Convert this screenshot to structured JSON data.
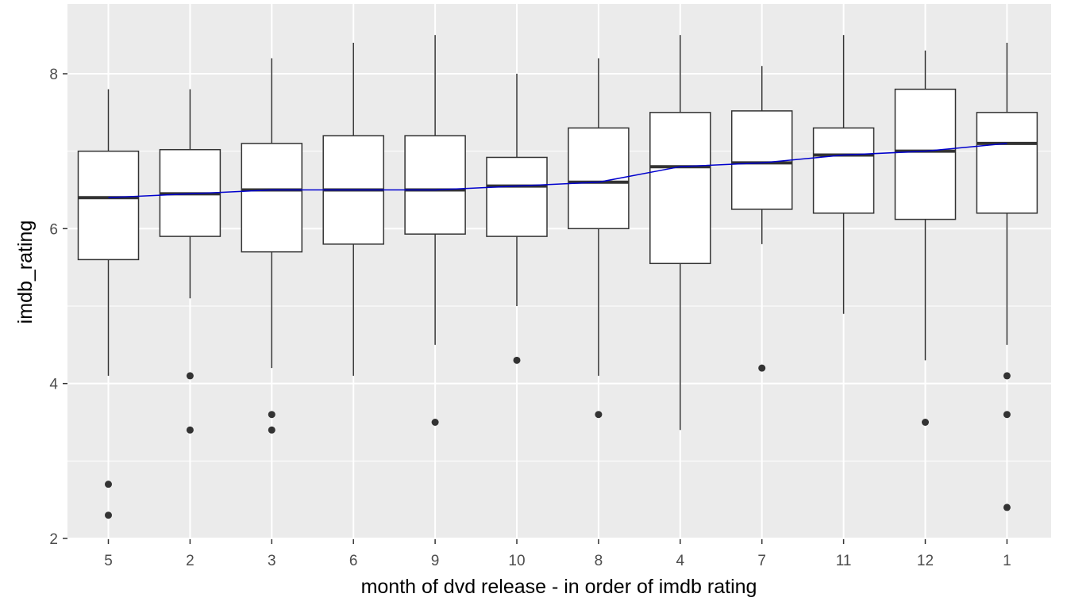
{
  "chart_data": {
    "type": "box",
    "xlabel": "month of dvd release - in order of imdb rating",
    "ylabel": "imdb_rating",
    "ylim": [
      2,
      8.8
    ],
    "yticks": [
      2,
      4,
      6,
      8
    ],
    "grid": true,
    "background": "#ebebeb",
    "median_line_color": "#0000cd",
    "categories": [
      "5",
      "2",
      "3",
      "6",
      "9",
      "10",
      "8",
      "4",
      "7",
      "11",
      "12",
      "1"
    ],
    "boxes": [
      {
        "category": "5",
        "whisker_low": 4.1,
        "q1": 5.6,
        "median": 6.4,
        "q3": 7.0,
        "whisker_high": 7.8,
        "outliers": [
          2.7,
          2.3
        ]
      },
      {
        "category": "2",
        "whisker_low": 5.1,
        "q1": 5.9,
        "median": 6.45,
        "q3": 7.02,
        "whisker_high": 7.8,
        "outliers": [
          4.1,
          3.4
        ]
      },
      {
        "category": "3",
        "whisker_low": 4.2,
        "q1": 5.7,
        "median": 6.5,
        "q3": 7.1,
        "whisker_high": 8.2,
        "outliers": [
          3.6,
          3.4
        ]
      },
      {
        "category": "6",
        "whisker_low": 4.1,
        "q1": 5.8,
        "median": 6.5,
        "q3": 7.2,
        "whisker_high": 8.4,
        "outliers": []
      },
      {
        "category": "9",
        "whisker_low": 4.5,
        "q1": 5.93,
        "median": 6.5,
        "q3": 7.2,
        "whisker_high": 8.5,
        "outliers": [
          3.5
        ]
      },
      {
        "category": "10",
        "whisker_low": 5.0,
        "q1": 5.9,
        "median": 6.55,
        "q3": 6.92,
        "whisker_high": 8.0,
        "outliers": [
          4.3
        ]
      },
      {
        "category": "8",
        "whisker_low": 4.1,
        "q1": 6.0,
        "median": 6.6,
        "q3": 7.3,
        "whisker_high": 8.2,
        "outliers": [
          3.6
        ]
      },
      {
        "category": "4",
        "whisker_low": 3.4,
        "q1": 5.55,
        "median": 6.8,
        "q3": 7.5,
        "whisker_high": 8.5,
        "outliers": []
      },
      {
        "category": "7",
        "whisker_low": 5.8,
        "q1": 6.25,
        "median": 6.85,
        "q3": 7.52,
        "whisker_high": 8.1,
        "outliers": [
          4.2
        ]
      },
      {
        "category": "11",
        "whisker_low": 4.9,
        "q1": 6.2,
        "median": 6.95,
        "q3": 7.3,
        "whisker_high": 8.5,
        "outliers": []
      },
      {
        "category": "12",
        "whisker_low": 4.3,
        "q1": 6.12,
        "median": 7.0,
        "q3": 7.8,
        "whisker_high": 8.3,
        "outliers": [
          3.5
        ]
      },
      {
        "category": "1",
        "whisker_low": 4.5,
        "q1": 6.2,
        "median": 7.1,
        "q3": 7.5,
        "whisker_high": 8.4,
        "outliers": [
          4.1,
          3.6,
          2.4
        ]
      }
    ]
  }
}
